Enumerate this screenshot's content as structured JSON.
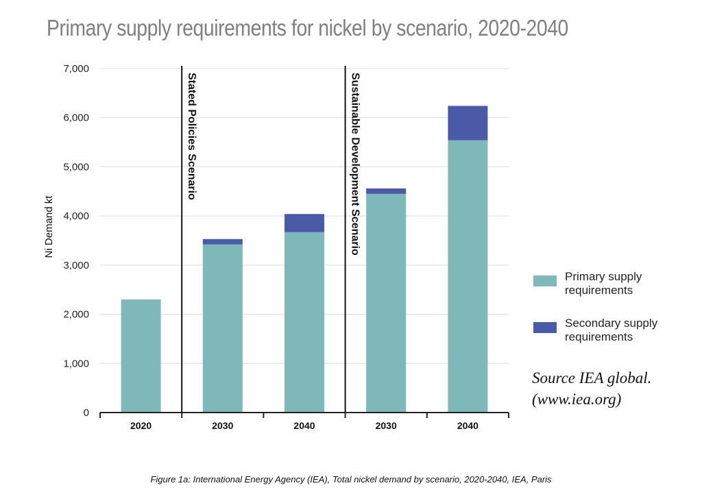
{
  "chart_data": {
    "type": "bar",
    "stacked": true,
    "title": "Primary supply requirements for nickel by scenario, 2020-2040",
    "ylabel": "Ni Demand kt",
    "xlabel": "",
    "ylim": [
      0,
      7000
    ],
    "yticks": [
      "0",
      "1,000",
      "2,000",
      "3,000",
      "4,000",
      "5,000",
      "6,000",
      "7,000"
    ],
    "ytick_values": [
      0,
      1000,
      2000,
      3000,
      4000,
      5000,
      6000,
      7000
    ],
    "grid": true,
    "categories": [
      "2020",
      "2030",
      "2040",
      "2030",
      "2040"
    ],
    "scenarios": [
      {
        "label": "Stated Policies Scenario",
        "starts_before_category": 1
      },
      {
        "label": "Sustainable Development Scenario",
        "starts_before_category": 3
      }
    ],
    "series": [
      {
        "name": "Primary supply requirements",
        "color": "#7eb8b8",
        "values": [
          2300,
          3420,
          3670,
          4450,
          5540
        ]
      },
      {
        "name": "Secondary supply requirements",
        "color": "#4a5aa6",
        "values": [
          0,
          110,
          370,
          110,
          700
        ]
      }
    ],
    "legend_position": "right"
  },
  "source_lines": [
    "Source IEA global.",
    "(www.iea.org)"
  ],
  "caption": "Figure 1a:  International Energy Agency (IEA), Total nickel demand by scenario, 2020-2040, IEA, Paris"
}
